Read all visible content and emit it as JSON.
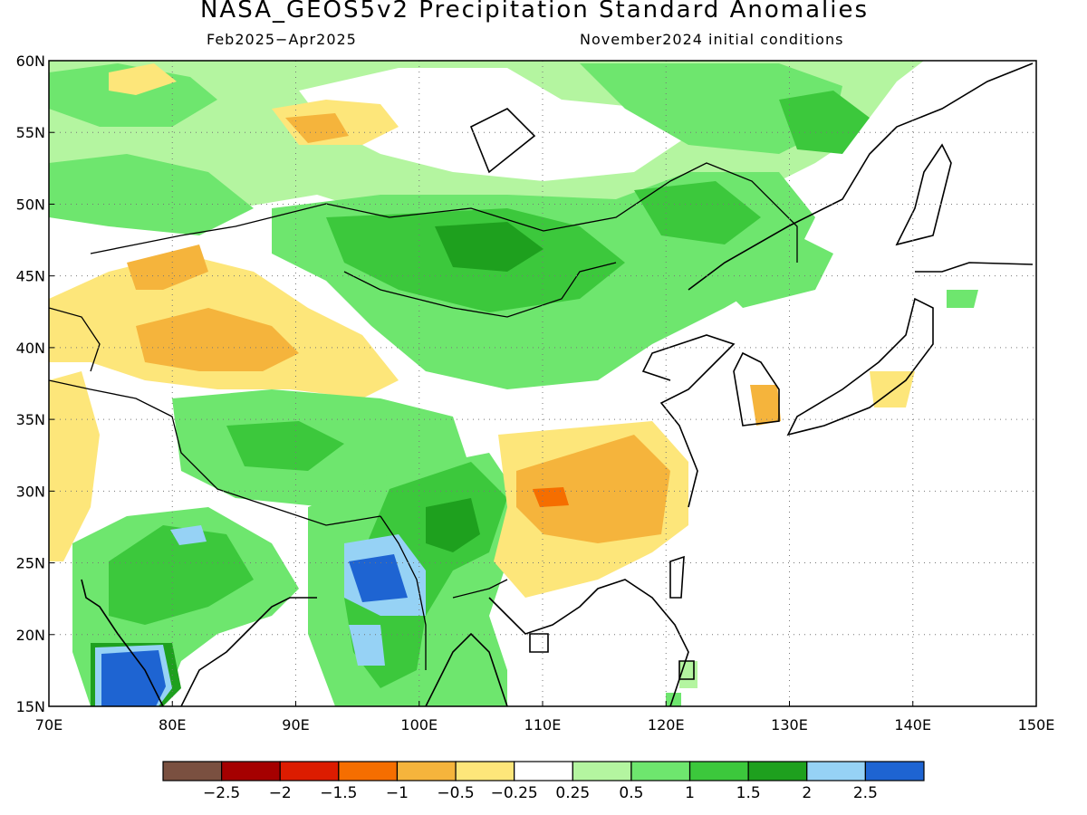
{
  "title": "NASA_GEOS5v2 Precipitation Standard Anomalies",
  "period": "Feb2025−Apr2025",
  "initial_conditions": "November2024 initial conditions",
  "map": {
    "lon_range": [
      70,
      150
    ],
    "lat_range": [
      15,
      60
    ],
    "lon_ticks": [
      "70E",
      "80E",
      "90E",
      "100E",
      "110E",
      "120E",
      "130E",
      "140E",
      "150E"
    ],
    "lat_ticks": [
      "15N",
      "20N",
      "25N",
      "30N",
      "35N",
      "40N",
      "45N",
      "50N",
      "55N",
      "60N"
    ],
    "grid": "dotted"
  },
  "colorbar": {
    "labels": [
      "−2.5",
      "−2",
      "−1.5",
      "−1",
      "−0.5",
      "−0.25",
      "0.25",
      "0.5",
      "1",
      "1.5",
      "2",
      "2.5"
    ],
    "colors": [
      "#7a5040",
      "#a50000",
      "#dc1c00",
      "#f56e00",
      "#f5b43c",
      "#fde67a",
      "#ffffff",
      "#b4f5a0",
      "#6ee66e",
      "#3cc83c",
      "#1ea01e",
      "#96d2f5",
      "#1e64d2"
    ]
  },
  "colors": {
    "light_green": "#b4f5a0",
    "green": "#6ee66e",
    "mid_green": "#3cc83c",
    "dark_green": "#1ea01e",
    "light_blue": "#96d2f5",
    "blue": "#1e64d2",
    "light_yellow": "#fde67a",
    "orange_yellow": "#f5b43c",
    "orange": "#f56e00",
    "red": "#dc1c00"
  }
}
